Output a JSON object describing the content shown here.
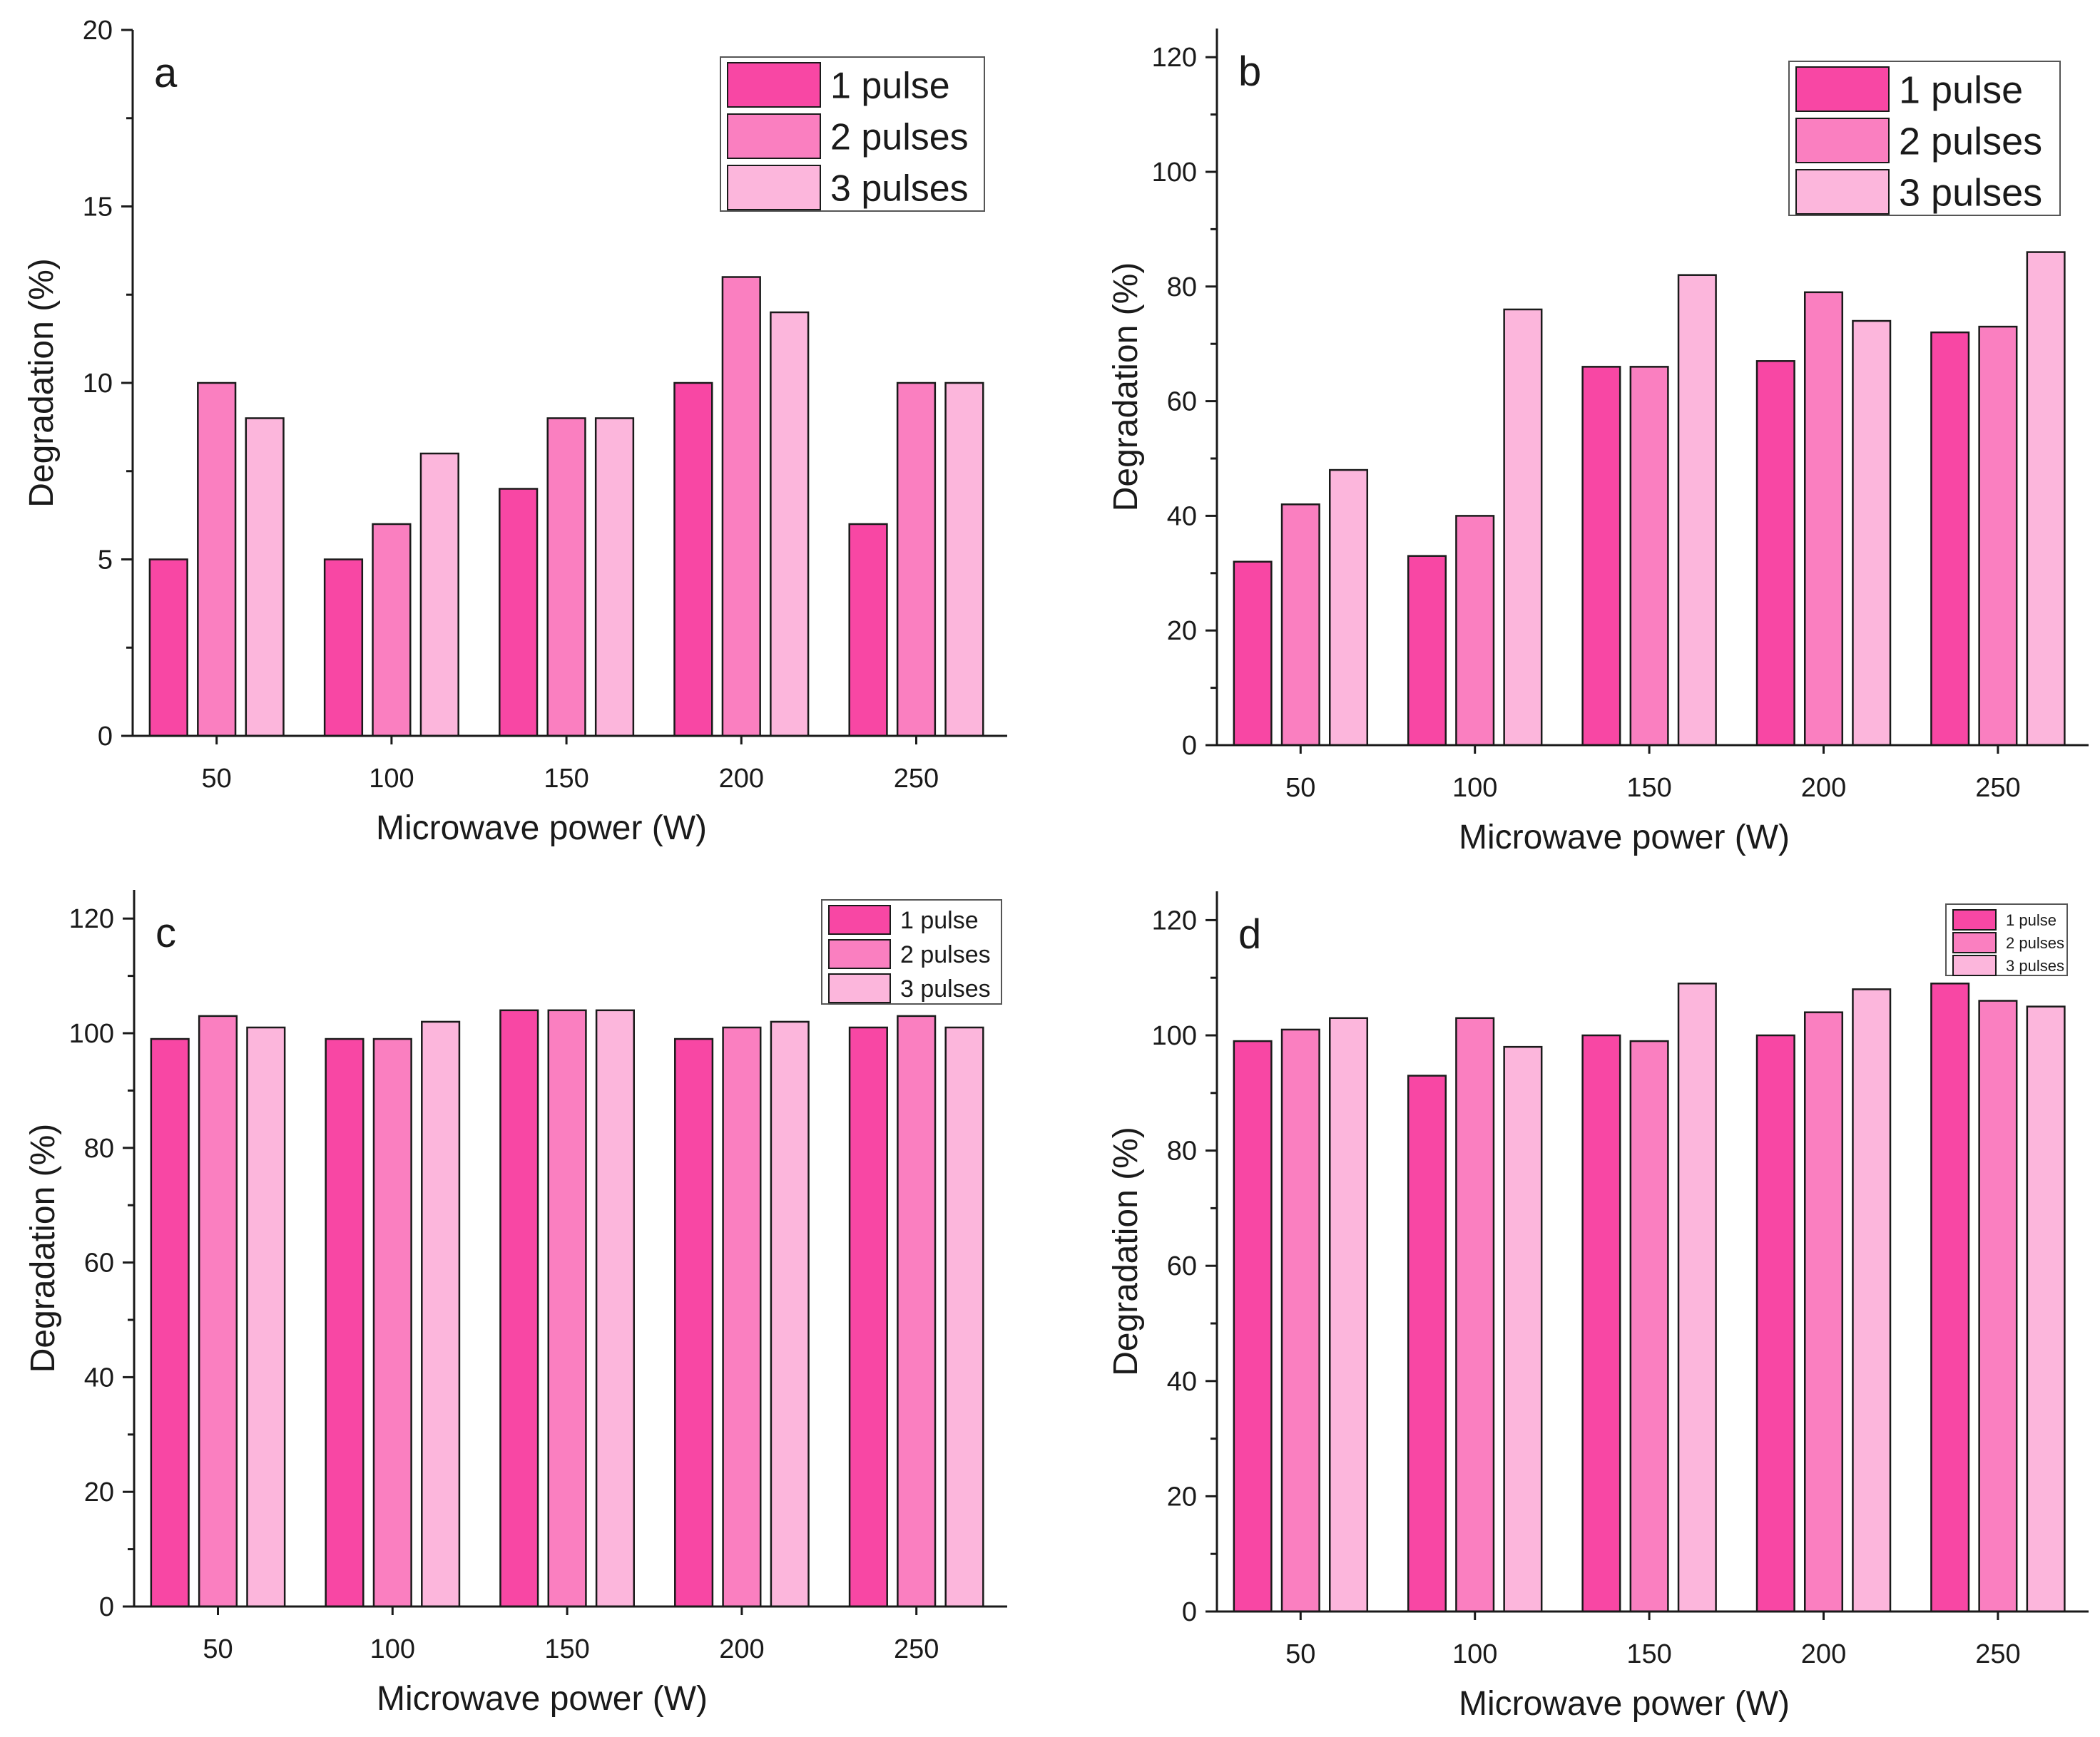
{
  "colors": {
    "series": [
      "#f847a4",
      "#fa7fc0",
      "#fcb6dc"
    ],
    "axis": "#1a1a1a",
    "bar_stroke": "#1a1a1a"
  },
  "chart_data": [
    {
      "panel": "a",
      "type": "bar",
      "categories": [
        "50",
        "100",
        "150",
        "200",
        "250"
      ],
      "series": [
        {
          "name": "1 pulse",
          "values": [
            5,
            5,
            7,
            10,
            6
          ]
        },
        {
          "name": "2 pulses",
          "values": [
            10,
            6,
            9,
            13,
            10
          ]
        },
        {
          "name": "3 pulses",
          "values": [
            9,
            8,
            9,
            12,
            10
          ]
        }
      ],
      "xlabel": "Microwave power (W)",
      "ylabel": "Degradation (%)",
      "ylim": [
        0,
        20
      ],
      "yticks": [
        0,
        5,
        10,
        15,
        20
      ],
      "legend": "top-right",
      "grid": false
    },
    {
      "panel": "b",
      "type": "bar",
      "categories": [
        "50",
        "100",
        "150",
        "200",
        "250"
      ],
      "series": [
        {
          "name": "1 pulse",
          "values": [
            32,
            33,
            66,
            67,
            72
          ]
        },
        {
          "name": "2 pulses",
          "values": [
            42,
            40,
            66,
            79,
            73
          ]
        },
        {
          "name": "3 pulses",
          "values": [
            48,
            76,
            82,
            74,
            86
          ]
        }
      ],
      "xlabel": "Microwave power (W)",
      "ylabel": "Degradation (%)",
      "ylim": [
        0,
        125
      ],
      "yticks": [
        0,
        20,
        40,
        60,
        80,
        100,
        120
      ],
      "legend": "top-right",
      "grid": false
    },
    {
      "panel": "c",
      "type": "bar",
      "categories": [
        "50",
        "100",
        "150",
        "200",
        "250"
      ],
      "series": [
        {
          "name": "1 pulse",
          "values": [
            99,
            99,
            104,
            99,
            101
          ]
        },
        {
          "name": "2 pulses",
          "values": [
            103,
            99,
            104,
            101,
            103
          ]
        },
        {
          "name": "3 pulses",
          "values": [
            101,
            102,
            104,
            102,
            101
          ]
        }
      ],
      "xlabel": "Microwave power (W)",
      "ylabel": "Degradation (%)",
      "ylim": [
        0,
        125
      ],
      "yticks": [
        0,
        20,
        40,
        60,
        80,
        100,
        120
      ],
      "legend": "top-right",
      "grid": false
    },
    {
      "panel": "d",
      "type": "bar",
      "categories": [
        "50",
        "100",
        "150",
        "200",
        "250"
      ],
      "series": [
        {
          "name": "1 pulse",
          "values": [
            99,
            93,
            100,
            100,
            109
          ]
        },
        {
          "name": "2 pulses",
          "values": [
            101,
            103,
            99,
            104,
            106
          ]
        },
        {
          "name": "3 pulses",
          "values": [
            103,
            98,
            109,
            108,
            105
          ]
        }
      ],
      "xlabel": "Microwave power (W)",
      "ylabel": "Degradation (%)",
      "ylim": [
        0,
        125
      ],
      "yticks": [
        0,
        20,
        40,
        60,
        80,
        100,
        120
      ],
      "legend": "top-right",
      "grid": false
    }
  ]
}
